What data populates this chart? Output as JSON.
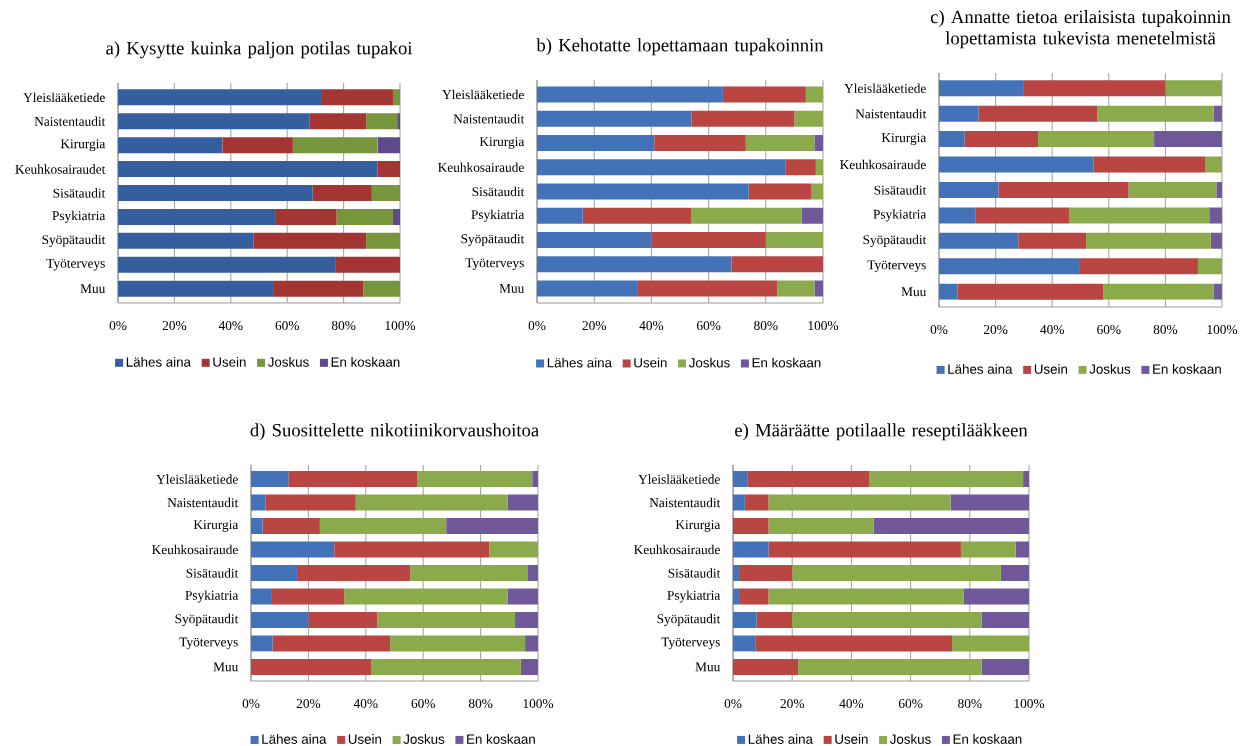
{
  "chart_data": [
    {
      "type": "bar",
      "orientation": "horizontal",
      "stacked": true,
      "title": "a) Kysytte kuinka paljon potilas tupakoi",
      "categories": [
        "Yleislääketiede",
        "Naistentaudit",
        "Kirurgia",
        "Keuhkosairaudet",
        "Sisätaudit",
        "Psykiatria",
        "Syöpätaudit",
        "Työterveys",
        "Muu"
      ],
      "series": [
        {
          "name": "Lähes aina",
          "color": "#355e9e",
          "values": [
            72,
            68,
            37,
            92,
            69,
            56,
            48,
            77,
            55
          ]
        },
        {
          "name": "Usein",
          "color": "#a33533",
          "values": [
            25.5,
            20,
            25,
            8,
            21,
            21.5,
            40,
            23,
            32
          ]
        },
        {
          "name": "Joskus",
          "color": "#77963b",
          "values": [
            2.5,
            11,
            30,
            0,
            10,
            20,
            12,
            0,
            13
          ]
        },
        {
          "name": "En koskaan",
          "color": "#5f4b8b",
          "values": [
            0,
            1,
            8,
            0,
            0,
            2.5,
            0,
            0,
            0
          ]
        }
      ],
      "xlim": [
        0,
        100
      ],
      "xticks": [
        {
          "value": 0,
          "label": "0%"
        },
        {
          "value": 20,
          "label": "20%"
        },
        {
          "value": 40,
          "label": "40%"
        },
        {
          "value": 60,
          "label": "60%"
        },
        {
          "value": 80,
          "label": "80%"
        },
        {
          "value": 100,
          "label": "100%"
        }
      ],
      "grid": "x",
      "legend": "bottom"
    },
    {
      "type": "bar",
      "orientation": "horizontal",
      "stacked": true,
      "title": "b) Kehotatte lopettamaan tupakoinnin",
      "categories": [
        "Yleislääketiede",
        "Naistentaudit",
        "Kirurgia",
        "Keuhkosairaude",
        "Sisätaudit",
        "Psykiatria",
        "Syöpätaudit",
        "Työterveys",
        "Muu"
      ],
      "series": [
        {
          "name": "Lähes aina",
          "color": "#4372b8",
          "values": [
            65,
            54,
            41,
            87,
            74,
            16,
            40,
            68,
            35
          ]
        },
        {
          "name": "Usein",
          "color": "#b94643",
          "values": [
            29,
            36,
            32,
            10.5,
            22,
            38,
            40,
            32,
            49
          ]
        },
        {
          "name": "Joskus",
          "color": "#8aaa4c",
          "values": [
            6,
            10,
            24,
            2.5,
            4,
            38.5,
            20,
            0,
            13
          ]
        },
        {
          "name": "En koskaan",
          "color": "#70599a",
          "values": [
            0,
            0,
            3,
            0,
            0,
            7.5,
            0,
            0,
            3
          ]
        }
      ],
      "xlim": [
        0,
        100
      ],
      "xticks": [
        {
          "value": 0,
          "label": "0%"
        },
        {
          "value": 20,
          "label": "20%"
        },
        {
          "value": 40,
          "label": "40%"
        },
        {
          "value": 60,
          "label": "60%"
        },
        {
          "value": 80,
          "label": "80%"
        },
        {
          "value": 100,
          "label": "100%"
        }
      ],
      "grid": "x",
      "legend": "bottom"
    },
    {
      "type": "bar",
      "orientation": "horizontal",
      "stacked": true,
      "title": "c) Annatte tietoa erilaisista tupakoinnin lopettamista tukevista menetelmistä",
      "categories": [
        "Yleislääketiede",
        "Naistentaudit",
        "Kirurgia",
        "Keuhkosairaude",
        "Sisätaudit",
        "Psykiatria",
        "Syöpätaudit",
        "Työterveys",
        "Muu"
      ],
      "series": [
        {
          "name": "Lähes aina",
          "color": "#4372b8",
          "values": [
            30,
            14,
            9,
            54.5,
            21,
            13,
            28,
            49.5,
            6.5
          ]
        },
        {
          "name": "Usein",
          "color": "#b94643",
          "values": [
            50,
            42,
            26,
            39.5,
            46,
            33,
            24,
            42,
            51.5
          ]
        },
        {
          "name": "Joskus",
          "color": "#8aaa4c",
          "values": [
            20,
            41,
            41,
            6,
            31,
            49.5,
            44,
            8.5,
            39
          ]
        },
        {
          "name": "En koskaan",
          "color": "#70599a",
          "values": [
            0,
            3,
            24,
            0,
            2,
            4.5,
            4,
            0,
            3
          ]
        }
      ],
      "xlim": [
        0,
        100
      ],
      "xticks": [
        {
          "value": 0,
          "label": "0%"
        },
        {
          "value": 20,
          "label": "20%"
        },
        {
          "value": 40,
          "label": "40%"
        },
        {
          "value": 60,
          "label": "60%"
        },
        {
          "value": 80,
          "label": "80%"
        },
        {
          "value": 100,
          "label": "100%"
        }
      ],
      "grid": "x",
      "legend": "bottom"
    },
    {
      "type": "bar",
      "orientation": "horizontal",
      "stacked": true,
      "title": "d) Suosittelette nikotiinikorvaushoitoa",
      "categories": [
        "Yleislääketiede",
        "Naistentaudit",
        "Kirurgia",
        "Keuhkosairaude",
        "Sisätaudit",
        "Psykiatria",
        "Syöpätaudit",
        "Työterveys",
        "Muu"
      ],
      "series": [
        {
          "name": "Lähes aina",
          "color": "#4372b8",
          "values": [
            13,
            5,
            4,
            29,
            16,
            7,
            20,
            7.5,
            0
          ]
        },
        {
          "name": "Usein",
          "color": "#b94643",
          "values": [
            45,
            31.5,
            20,
            54,
            39.5,
            25.5,
            24,
            41,
            42
          ]
        },
        {
          "name": "Joskus",
          "color": "#8aaa4c",
          "values": [
            40,
            53,
            44,
            17,
            41,
            57,
            48,
            47,
            52
          ]
        },
        {
          "name": "En koskaan",
          "color": "#70599a",
          "values": [
            2,
            10.5,
            32,
            0,
            3.5,
            10.5,
            8,
            4.5,
            6
          ]
        }
      ],
      "xlim": [
        0,
        100
      ],
      "xticks": [
        {
          "value": 0,
          "label": "0%"
        },
        {
          "value": 20,
          "label": "20%"
        },
        {
          "value": 40,
          "label": "40%"
        },
        {
          "value": 60,
          "label": "60%"
        },
        {
          "value": 80,
          "label": "80%"
        },
        {
          "value": 100,
          "label": "100%"
        }
      ],
      "grid": "x",
      "legend": "bottom"
    },
    {
      "type": "bar",
      "orientation": "horizontal",
      "stacked": true,
      "title": "e) Määräätte potilaalle reseptilääkkeen",
      "categories": [
        "Yleislääketiede",
        "Naistentaudit",
        "Kirurgia",
        "Keuhkosairaude",
        "Sisätaudit",
        "Psykiatria",
        "Syöpätaudit",
        "Työterveys",
        "Muu"
      ],
      "series": [
        {
          "name": "Lähes aina",
          "color": "#4372b8",
          "values": [
            5,
            4,
            0,
            12,
            2,
            2,
            8,
            7.5,
            0
          ]
        },
        {
          "name": "Usein",
          "color": "#b94643",
          "values": [
            41,
            8,
            12,
            65,
            18,
            10,
            12,
            66.5,
            22
          ]
        },
        {
          "name": "Joskus",
          "color": "#8aaa4c",
          "values": [
            52,
            61.5,
            35.5,
            18.5,
            70.5,
            66,
            64,
            26,
            62
          ]
        },
        {
          "name": "En koskaan",
          "color": "#70599a",
          "values": [
            2,
            26.5,
            52.5,
            4.5,
            9.5,
            22,
            16,
            0,
            16
          ]
        }
      ],
      "xlim": [
        0,
        100
      ],
      "xticks": [
        {
          "value": 0,
          "label": "0%"
        },
        {
          "value": 20,
          "label": "20%"
        },
        {
          "value": 40,
          "label": "40%"
        },
        {
          "value": 60,
          "label": "60%"
        },
        {
          "value": 80,
          "label": "80%"
        },
        {
          "value": 100,
          "label": "100%"
        }
      ],
      "grid": "x",
      "legend": "bottom"
    }
  ]
}
